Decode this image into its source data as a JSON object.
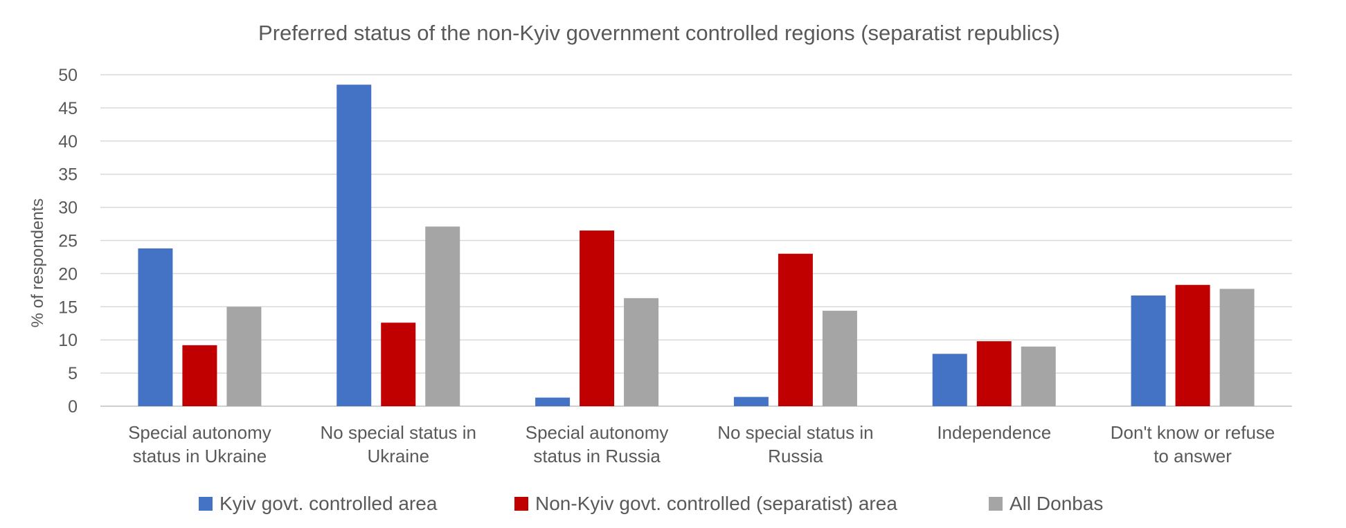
{
  "chart_data": {
    "type": "bar",
    "title": "Preferred status of the non-Kyiv government controlled regions (separatist republics)",
    "ylabel": "% of respondents",
    "xlabel": "",
    "ylim": [
      0,
      50
    ],
    "yticks": [
      0,
      5,
      10,
      15,
      20,
      25,
      30,
      35,
      40,
      45,
      50
    ],
    "grid": true,
    "legend_position": "bottom",
    "categories": [
      [
        "Special autonomy",
        "status in Ukraine"
      ],
      [
        "No special status in",
        "Ukraine"
      ],
      [
        "Special autonomy",
        "status in Russia"
      ],
      [
        "No special  status in",
        "Russia"
      ],
      [
        "Independence"
      ],
      [
        "Don't know or refuse",
        "to answer"
      ]
    ],
    "series": [
      {
        "name": "Kyiv govt. controlled area",
        "color": "#4472C4",
        "values": [
          23.8,
          48.5,
          1.3,
          1.4,
          7.9,
          16.7
        ]
      },
      {
        "name": "Non-Kyiv govt. controlled (separatist) area",
        "color": "#C00000",
        "values": [
          9.2,
          12.6,
          26.5,
          23.0,
          9.8,
          18.3
        ]
      },
      {
        "name": "All Donbas",
        "color": "#A5A5A5",
        "values": [
          15.0,
          27.1,
          16.3,
          14.4,
          9.0,
          17.7
        ]
      }
    ]
  }
}
